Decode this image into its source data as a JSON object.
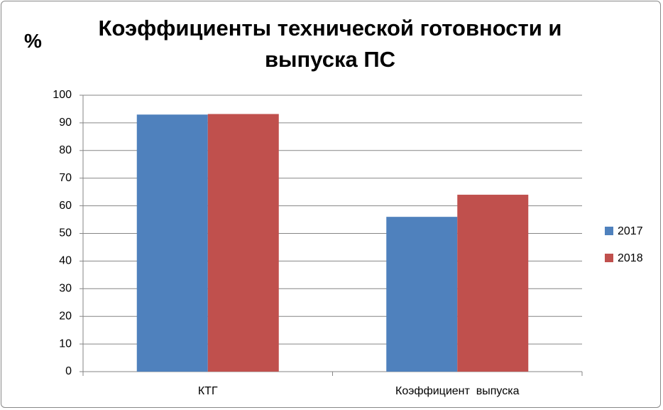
{
  "chart_data": {
    "type": "bar",
    "title": "Коэффициенты технической готовности и выпуска ПС",
    "y_label": "%",
    "categories": [
      "КТГ",
      "Коэффициент  выпуска"
    ],
    "series": [
      {
        "name": "2017",
        "color": "#4f81bd",
        "values": [
          93,
          56
        ]
      },
      {
        "name": "2018",
        "color": "#c0504d",
        "values": [
          93.2,
          64
        ]
      }
    ],
    "ylim": [
      0,
      100
    ],
    "yticks": [
      0,
      10,
      20,
      30,
      40,
      50,
      60,
      70,
      80,
      90,
      100
    ],
    "grid": true,
    "legend": "right"
  }
}
